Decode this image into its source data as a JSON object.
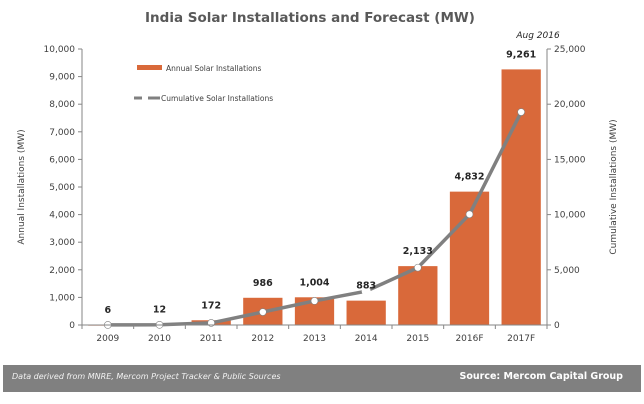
{
  "chart_data": {
    "type": "bar",
    "title": "India Solar Installations and Forecast (MW)",
    "subtitle": "Aug 2016",
    "categories": [
      "2009",
      "2010",
      "2011",
      "2012",
      "2013",
      "2014",
      "2015",
      "2016F",
      "2017F"
    ],
    "series": [
      {
        "name": "Annual Solar Installations",
        "type": "bar",
        "axis": "left",
        "color": "#D9693A",
        "values": [
          6,
          12,
          172,
          986,
          1004,
          883,
          2133,
          4832,
          9261
        ],
        "labels": [
          "6",
          "12",
          "172",
          "986",
          "1,004",
          "883",
          "2,133",
          "4,832",
          "9,261"
        ]
      },
      {
        "name": "Cumulative Solar Installations",
        "type": "line",
        "axis": "right",
        "color": "#808080",
        "values": [
          6,
          18,
          190,
          1176,
          2180,
          3063,
          5196,
          10028,
          19289
        ]
      }
    ],
    "ylabel": "Annual Installations (MW)",
    "y2label": "Cumulative Installations (MW)",
    "xlabel": "",
    "ylim": [
      0,
      10000
    ],
    "y2lim": [
      0,
      25000
    ],
    "yticks": [
      "0",
      "1,000",
      "2,000",
      "3,000",
      "4,000",
      "5,000",
      "6,000",
      "7,000",
      "8,000",
      "9,000",
      "10,000"
    ],
    "ytick_values": [
      0,
      1000,
      2000,
      3000,
      4000,
      5000,
      6000,
      7000,
      8000,
      9000,
      10000
    ],
    "y2ticks": [
      "0",
      "5,000",
      "10,000",
      "15,000",
      "20,000",
      "25,000"
    ],
    "y2tick_values": [
      0,
      5000,
      10000,
      15000,
      20000,
      25000
    ],
    "grid": false,
    "legend": "top-left"
  },
  "footer": {
    "note": "Data derived from MNRE, Mercom Project Tracker & Public Sources",
    "source": "Source: Mercom Capital Group"
  }
}
